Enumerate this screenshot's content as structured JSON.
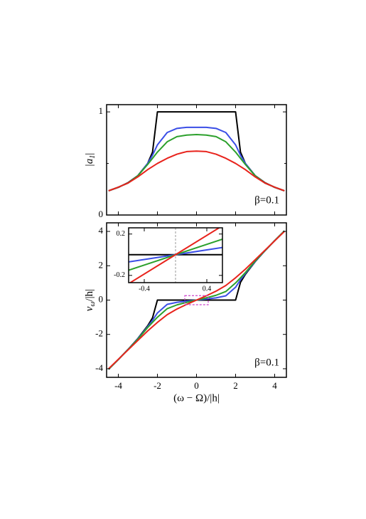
{
  "chart_data": [
    {
      "type": "line",
      "ylabel": {
        "main": "|a",
        "sub": "1",
        "tail": "|"
      },
      "annotation": "β=0.1",
      "x": [
        -4.5,
        -4,
        -3.5,
        -3,
        -2.5,
        -2.25,
        -2,
        -1.5,
        -1,
        -0.5,
        0,
        0.5,
        1,
        1.5,
        2,
        2.25,
        2.5,
        3,
        3.5,
        4,
        4.5
      ],
      "series": [
        {
          "color": "#000000",
          "values": [
            0.234,
            0.268,
            0.314,
            0.382,
            0.5,
            0.61,
            1,
            1,
            1,
            1,
            1,
            1,
            1,
            1,
            1,
            0.61,
            0.5,
            0.382,
            0.314,
            0.268,
            0.234
          ]
        },
        {
          "color": "#3a4ee6",
          "values": [
            0.235,
            0.27,
            0.31,
            0.38,
            0.5,
            0.58,
            0.68,
            0.8,
            0.84,
            0.85,
            0.85,
            0.85,
            0.84,
            0.8,
            0.68,
            0.58,
            0.5,
            0.38,
            0.31,
            0.27,
            0.235
          ]
        },
        {
          "color": "#2ca02c",
          "values": [
            0.235,
            0.27,
            0.31,
            0.38,
            0.49,
            0.55,
            0.61,
            0.71,
            0.76,
            0.775,
            0.78,
            0.775,
            0.76,
            0.71,
            0.61,
            0.55,
            0.49,
            0.38,
            0.31,
            0.27,
            0.235
          ]
        },
        {
          "color": "#e8231c",
          "values": [
            0.235,
            0.27,
            0.31,
            0.37,
            0.44,
            0.47,
            0.5,
            0.55,
            0.59,
            0.615,
            0.62,
            0.615,
            0.59,
            0.55,
            0.5,
            0.47,
            0.44,
            0.37,
            0.31,
            0.27,
            0.235
          ]
        }
      ],
      "xlim": [
        -4.6,
        4.6
      ],
      "xticks": [
        -4,
        -2,
        0,
        2,
        4
      ],
      "xtick_labels": false,
      "ylim": [
        0,
        1.07
      ],
      "yticks": [
        0,
        1
      ],
      "yminorticks": [
        0.5
      ]
    },
    {
      "type": "line",
      "xlabel": "(ω − Ω)/|h|",
      "ylabel": {
        "main": "ν",
        "sub": "ω",
        "tail": "/|h|"
      },
      "annotation": "β=0.1",
      "x": [
        -4.5,
        -4,
        -3.5,
        -3,
        -2.5,
        -2.25,
        -2,
        -1.5,
        -1,
        -0.5,
        0,
        0.5,
        1,
        1.5,
        2,
        2.25,
        2.5,
        3,
        3.5,
        4,
        4.5
      ],
      "series": [
        {
          "color": "#000000",
          "values": [
            -4.031,
            -3.464,
            -2.872,
            -2.236,
            -1.5,
            -1.031,
            0,
            0,
            0,
            0,
            0,
            0,
            0,
            0,
            0,
            1.031,
            1.5,
            2.236,
            2.872,
            3.464,
            4.031
          ]
        },
        {
          "color": "#3a4ee6",
          "values": [
            -4.03,
            -3.46,
            -2.87,
            -2.25,
            -1.55,
            -1.18,
            -0.75,
            -0.25,
            -0.13,
            -0.06,
            0,
            0.06,
            0.13,
            0.25,
            0.75,
            1.18,
            1.55,
            2.25,
            2.87,
            3.46,
            4.03
          ]
        },
        {
          "color": "#2ca02c",
          "values": [
            -4.03,
            -3.46,
            -2.88,
            -2.28,
            -1.6,
            -1.3,
            -1.0,
            -0.5,
            -0.28,
            -0.13,
            0,
            0.13,
            0.28,
            0.5,
            1.0,
            1.3,
            1.6,
            2.28,
            2.88,
            3.46,
            4.03
          ]
        },
        {
          "color": "#e8231c",
          "values": [
            -4.0,
            -3.45,
            -2.9,
            -2.35,
            -1.8,
            -1.55,
            -1.3,
            -0.85,
            -0.52,
            -0.25,
            0,
            0.25,
            0.52,
            0.85,
            1.3,
            1.55,
            1.8,
            2.35,
            2.9,
            3.45,
            4.0
          ]
        }
      ],
      "xlim": [
        -4.6,
        4.6
      ],
      "xticks": [
        -4,
        -2,
        0,
        2,
        4
      ],
      "ylim": [
        -4.5,
        4.5
      ],
      "yticks": [
        -4,
        -2,
        0,
        2,
        4
      ]
    },
    {
      "type": "line",
      "x": [
        -0.6,
        0,
        0.6
      ],
      "series": [
        {
          "color": "#000000",
          "values": [
            0,
            0,
            0
          ]
        },
        {
          "color": "#3a4ee6",
          "values": [
            -0.07,
            0,
            0.07
          ]
        },
        {
          "color": "#2ca02c",
          "values": [
            -0.15,
            0,
            0.15
          ]
        },
        {
          "color": "#e8231c",
          "values": [
            -0.28,
            0,
            0.28
          ]
        }
      ],
      "xlim": [
        -0.6,
        0.6
      ],
      "xticks": [
        -0.4,
        0.4
      ],
      "ylim": [
        -0.27,
        0.26
      ],
      "yticks": [
        -0.2,
        0.2
      ],
      "vline": 0,
      "vline_color": "#999999",
      "highlight_color": "#cc44cc"
    }
  ]
}
